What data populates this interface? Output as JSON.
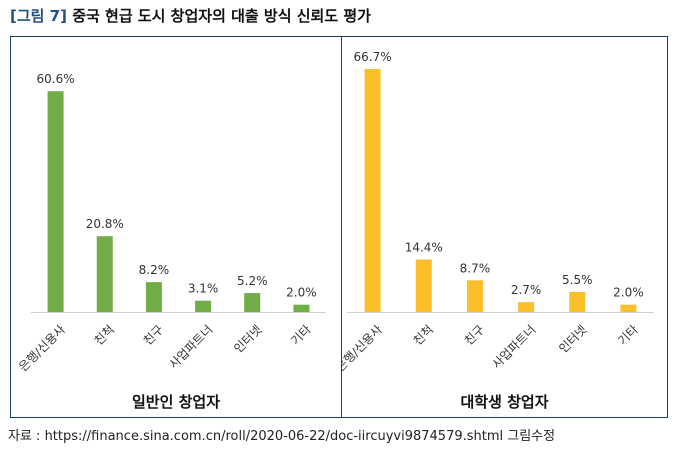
{
  "header": {
    "tag": "[그림 7]",
    "title": "중국 현급 도시 창업자의 대출 방식 신뢰도 평가"
  },
  "source": "자료 : https://finance.sina.com.cn/roll/2020-06-22/doc-iircuyvi9874579.shtml 그림수정",
  "colors": {
    "general": "#70ad47",
    "student": "#fbbf2b",
    "frame": "#1d3f66"
  },
  "chart_data": [
    {
      "type": "bar",
      "title": "일반인 창업자",
      "categories": [
        "은행/신용사",
        "친척",
        "친구",
        "사업파트너",
        "인터넷",
        "기타"
      ],
      "values": [
        60.6,
        20.8,
        8.2,
        3.1,
        5.2,
        2.0
      ],
      "labels": [
        "60.6%",
        "20.8%",
        "8.2%",
        "3.1%",
        "5.2%",
        "2.0%"
      ],
      "ylim": [
        0,
        70
      ],
      "grid": false,
      "color": "#70ad47"
    },
    {
      "type": "bar",
      "title": "대학생 창업자",
      "categories": [
        "은행/신용사",
        "친척",
        "친구",
        "사업파트너",
        "인터넷",
        "기타"
      ],
      "values": [
        66.7,
        14.4,
        8.7,
        2.7,
        5.5,
        2.0
      ],
      "labels": [
        "66.7%",
        "14.4%",
        "8.7%",
        "2.7%",
        "5.5%",
        "2.0%"
      ],
      "ylim": [
        0,
        70
      ],
      "grid": false,
      "color": "#fbbf2b"
    }
  ]
}
